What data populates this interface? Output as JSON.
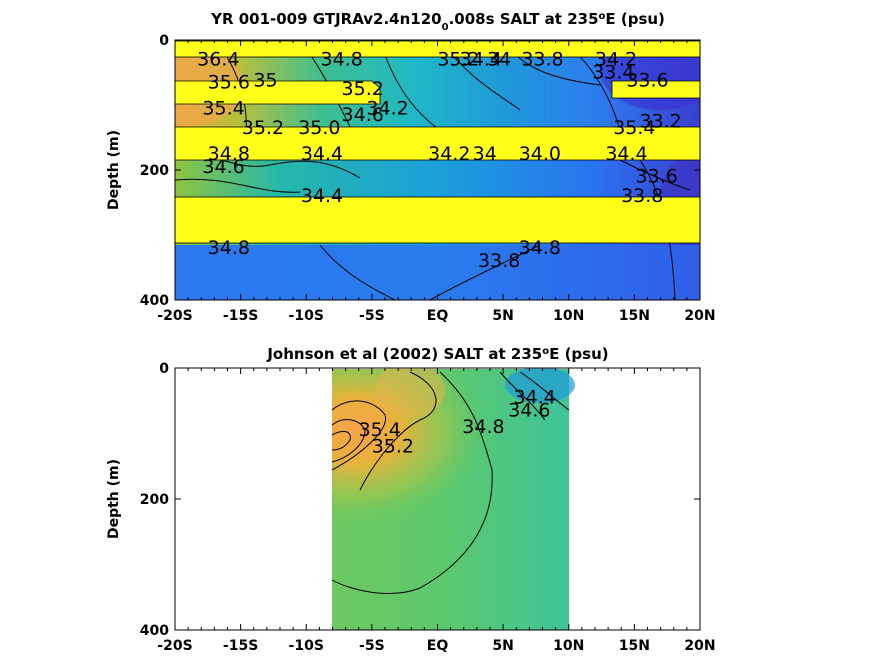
{
  "chart_data": [
    {
      "type": "heatmap",
      "title": "YR 001-009 GTJRAv2.4n120",
      "title_sub": "0",
      "title_tail": ".008s SALT at 235",
      "title_sup": "o",
      "title_end": "E (psu)",
      "ylabel": "Depth (m)",
      "xlim": [
        -20,
        20
      ],
      "ylim": [
        400,
        0
      ],
      "x_ticks": [
        "-20S",
        "-15S",
        "-10S",
        "-5S",
        "EQ",
        "5N",
        "10N",
        "15N",
        "20N"
      ],
      "x_tick_values": [
        -20,
        -15,
        -10,
        -5,
        0,
        5,
        10,
        15,
        20
      ],
      "y_ticks": [
        "0",
        "200",
        "400"
      ],
      "y_tick_values": [
        0,
        200,
        400
      ],
      "colormap": [
        "#3e26a8",
        "#2d6ff2",
        "#1aa8d6",
        "#2fc2a0",
        "#7fc94d",
        "#d6b53a",
        "#f7a63a",
        "#f9fb0e"
      ],
      "masked_depth_bands": [
        [
          8,
          28
        ],
        [
          63,
          90
        ],
        [
          136,
          184
        ],
        [
          240,
          310
        ]
      ],
      "mask_color": "#ffff1a",
      "contour_labels": [
        {
          "text": "36.4",
          "x": -16.7,
          "d": 30
        },
        {
          "text": "34.8",
          "x": -7.3,
          "d": 30
        },
        {
          "text": "35.2",
          "x": 1.6,
          "d": 30
        },
        {
          "text": "34.4",
          "x": 3.3,
          "d": 30
        },
        {
          "text": "34",
          "x": 4.7,
          "d": 30
        },
        {
          "text": "33.8",
          "x": 8.0,
          "d": 30
        },
        {
          "text": "34.2",
          "x": 13.6,
          "d": 30
        },
        {
          "text": "33.4",
          "x": 13.4,
          "d": 50
        },
        {
          "text": "35.6",
          "x": -15.9,
          "d": 65
        },
        {
          "text": "35",
          "x": -13.1,
          "d": 62
        },
        {
          "text": "35.2",
          "x": -5.7,
          "d": 75
        },
        {
          "text": "33.6",
          "x": 16.0,
          "d": 62
        },
        {
          "text": "35.4",
          "x": -16.3,
          "d": 105
        },
        {
          "text": "34.6",
          "x": -5.7,
          "d": 115
        },
        {
          "text": "34.2",
          "x": -3.8,
          "d": 105
        },
        {
          "text": "35.2",
          "x": -13.3,
          "d": 135
        },
        {
          "text": "35.0",
          "x": -9.0,
          "d": 135
        },
        {
          "text": "35.4",
          "x": 15.0,
          "d": 135
        },
        {
          "text": "33.2",
          "x": 17.0,
          "d": 125
        },
        {
          "text": "34.8",
          "x": -15.9,
          "d": 175
        },
        {
          "text": "34.4",
          "x": -8.8,
          "d": 175
        },
        {
          "text": "34.2",
          "x": 0.9,
          "d": 175
        },
        {
          "text": "34",
          "x": 3.6,
          "d": 175
        },
        {
          "text": "34.0",
          "x": 7.8,
          "d": 175
        },
        {
          "text": "34.4",
          "x": 14.4,
          "d": 175
        },
        {
          "text": "34.6",
          "x": -16.3,
          "d": 195
        },
        {
          "text": "33.6",
          "x": 16.7,
          "d": 210
        },
        {
          "text": "34.4",
          "x": -8.8,
          "d": 240
        },
        {
          "text": "33.8",
          "x": 15.6,
          "d": 240
        },
        {
          "text": "34.8",
          "x": -15.9,
          "d": 320
        },
        {
          "text": "34.8",
          "x": 7.8,
          "d": 320
        },
        {
          "text": "33.8",
          "x": 4.7,
          "d": 340
        }
      ]
    },
    {
      "type": "heatmap",
      "title": "Johnson et al (2002) SALT at 235",
      "title_sup": "o",
      "title_end": "E (psu)",
      "ylabel": "Depth (m)",
      "xlim": [
        -20,
        20
      ],
      "ylim": [
        400,
        0
      ],
      "data_xlim": [
        -8,
        10
      ],
      "x_ticks": [
        "-20S",
        "-15S",
        "-10S",
        "-5S",
        "EQ",
        "5N",
        "10N",
        "15N",
        "20N"
      ],
      "x_tick_values": [
        -20,
        -15,
        -10,
        -5,
        0,
        5,
        10,
        15,
        20
      ],
      "y_ticks": [
        "0",
        "200",
        "400"
      ],
      "y_tick_values": [
        0,
        200,
        400
      ],
      "contour_labels": [
        {
          "text": "35.4",
          "x": -4.4,
          "d": 95
        },
        {
          "text": "35.2",
          "x": -3.4,
          "d": 120
        },
        {
          "text": "34.8",
          "x": 3.5,
          "d": 90
        },
        {
          "text": "34.4",
          "x": 7.4,
          "d": 45
        },
        {
          "text": "34.6",
          "x": 7.0,
          "d": 65
        }
      ]
    }
  ]
}
